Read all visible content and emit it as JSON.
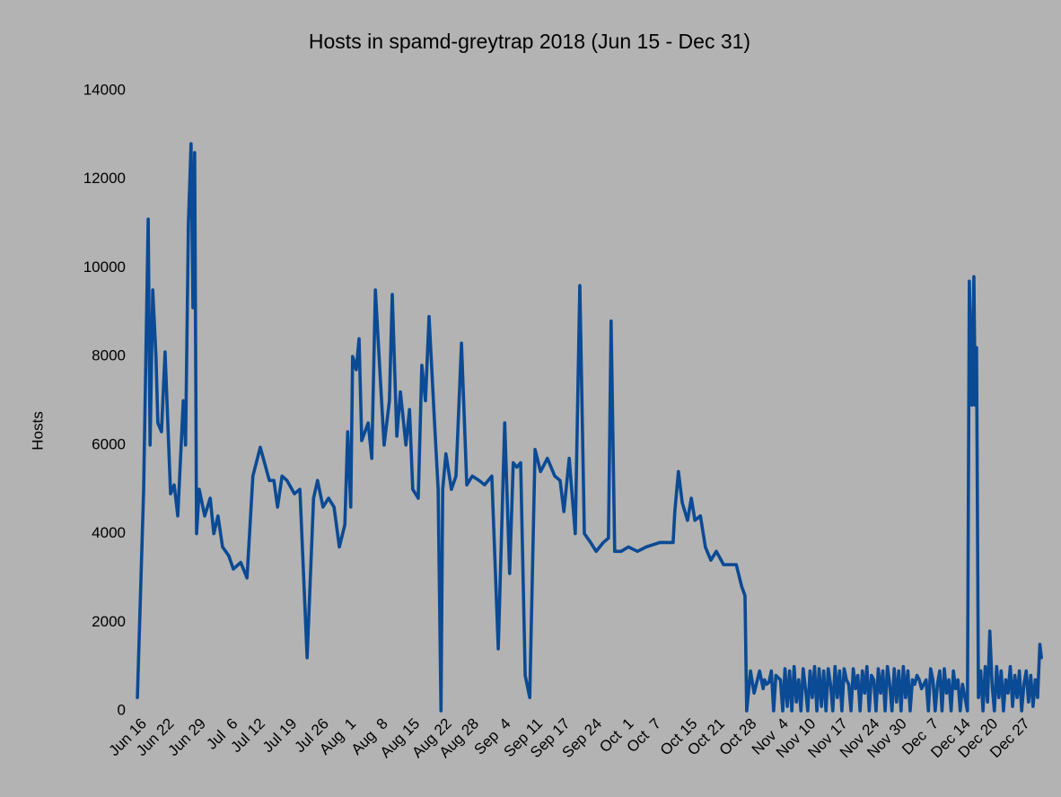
{
  "chart_data": {
    "type": "line",
    "title": "Hosts in spamd-greytrap 2018 (Jun 15 - Dec 31)",
    "y_label": "Hosts",
    "color": "#0b4a94",
    "xlim": [
      "2018-06-15",
      "2018-12-31"
    ],
    "ylim": [
      0,
      14000
    ],
    "yticks": [
      0,
      2000,
      4000,
      6000,
      8000,
      10000,
      12000,
      14000
    ],
    "grid": false,
    "xticks": [
      {
        "value": "2018-06-16",
        "label": "Jun 16"
      },
      {
        "value": "2018-06-22",
        "label": "Jun 22"
      },
      {
        "value": "2018-06-29",
        "label": "Jun 29"
      },
      {
        "value": "2018-07-06",
        "label": "Jul  6"
      },
      {
        "value": "2018-07-12",
        "label": "Jul 12"
      },
      {
        "value": "2018-07-19",
        "label": "Jul 19"
      },
      {
        "value": "2018-07-26",
        "label": "Jul 26"
      },
      {
        "value": "2018-08-01",
        "label": "Aug  1"
      },
      {
        "value": "2018-08-08",
        "label": "Aug  8"
      },
      {
        "value": "2018-08-15",
        "label": "Aug 15"
      },
      {
        "value": "2018-08-22",
        "label": "Aug 22"
      },
      {
        "value": "2018-08-28",
        "label": "Aug 28"
      },
      {
        "value": "2018-09-04",
        "label": "Sep  4"
      },
      {
        "value": "2018-09-11",
        "label": "Sep 11"
      },
      {
        "value": "2018-09-17",
        "label": "Sep 17"
      },
      {
        "value": "2018-09-24",
        "label": "Sep 24"
      },
      {
        "value": "2018-10-01",
        "label": "Oct  1"
      },
      {
        "value": "2018-10-07",
        "label": "Oct  7"
      },
      {
        "value": "2018-10-15",
        "label": "Oct 15"
      },
      {
        "value": "2018-10-21",
        "label": "Oct 21"
      },
      {
        "value": "2018-10-28",
        "label": "Oct 28"
      },
      {
        "value": "2018-11-04",
        "label": "Nov  4"
      },
      {
        "value": "2018-11-10",
        "label": "Nov 10"
      },
      {
        "value": "2018-11-17",
        "label": "Nov 17"
      },
      {
        "value": "2018-11-24",
        "label": "Nov 24"
      },
      {
        "value": "2018-11-30",
        "label": "Nov 30"
      },
      {
        "value": "2018-12-07",
        "label": "Dec  7"
      },
      {
        "value": "2018-12-14",
        "label": "Dec 14"
      },
      {
        "value": "2018-12-20",
        "label": "Dec 20"
      },
      {
        "value": "2018-12-27",
        "label": "Dec 27"
      }
    ],
    "x": [
      "2018-06-15T05:00",
      "2018-06-16T14:00",
      "2018-06-17T14:00",
      "2018-06-18T00:00",
      "2018-06-18T14:00",
      "2018-06-19T07:00",
      "2018-06-19T17:00",
      "2018-06-20T12:00",
      "2018-06-21T07:00",
      "2018-06-22T12:00",
      "2018-06-23T07:00",
      "2018-06-24T02:00",
      "2018-06-25T07:00",
      "2018-06-25T19:00",
      "2018-06-26T10:00",
      "2018-06-27T00:00",
      "2018-06-27T10:00",
      "2018-06-27T19:00",
      "2018-06-28T05:00",
      "2018-06-28T19:00",
      "2018-06-30T00:00",
      "2018-07-01T05:00",
      "2018-07-02T00:00",
      "2018-07-02T22:00",
      "2018-07-03T22:00",
      "2018-07-05T07:00",
      "2018-07-06T07:00",
      "2018-07-07T22:00",
      "2018-07-09T07:00",
      "2018-07-10T14:00",
      "2018-07-12T05:00",
      "2018-07-14T05:00",
      "2018-07-15T05:00",
      "2018-07-16T00:00",
      "2018-07-17T00:00",
      "2018-07-18T02:00",
      "2018-07-19T17:00",
      "2018-07-20T22:00",
      "2018-07-22T12:00",
      "2018-07-23T22:00",
      "2018-07-24T19:00",
      "2018-07-26T00:00",
      "2018-07-27T05:00",
      "2018-07-28T10:00",
      "2018-07-29T14:00",
      "2018-07-30T19:00",
      "2018-07-31T10:00",
      "2018-08-01T02:00",
      "2018-08-01T12:00",
      "2018-08-02T07:00",
      "2018-08-02T22:00",
      "2018-08-03T12:00",
      "2018-08-04T22:00",
      "2018-08-05T17:00",
      "2018-08-06T12:00",
      "2018-08-07T14:00",
      "2018-08-08T10:00",
      "2018-08-09T14:00",
      "2018-08-10T05:00",
      "2018-08-11T05:00",
      "2018-08-12T00:00",
      "2018-08-13T05:00",
      "2018-08-14T00:00",
      "2018-08-14T17:00",
      "2018-08-15T22:00",
      "2018-08-16T17:00",
      "2018-08-17T12:00",
      "2018-08-18T07:00",
      "2018-08-19T12:00",
      "2018-08-20T07:00",
      "2018-08-20T22:00",
      "2018-08-21T07:00",
      "2018-08-22T00:00",
      "2018-08-23T05:00",
      "2018-08-24T05:00",
      "2018-08-25T10:00",
      "2018-08-26T14:00",
      "2018-08-27T19:00",
      "2018-08-29T07:00",
      "2018-08-30T12:00",
      "2018-09-01T02:00",
      "2018-09-02T12:00",
      "2018-09-03T22:00",
      "2018-09-05T00:00",
      "2018-09-05T19:00",
      "2018-09-06T14:00",
      "2018-09-07T10:00",
      "2018-09-08T10:00",
      "2018-09-09T10:00",
      "2018-09-10T14:00",
      "2018-09-11T19:00",
      "2018-09-13T07:00",
      "2018-09-14T22:00",
      "2018-09-16T02:00",
      "2018-09-16T22:00",
      "2018-09-18T02:00",
      "2018-09-19T10:00",
      "2018-09-20T10:00",
      "2018-09-21T10:00",
      "2018-09-22T19:00",
      "2018-09-24T00:00",
      "2018-09-25T14:00",
      "2018-09-26T17:00",
      "2018-09-27T07:00",
      "2018-09-28T02:00",
      "2018-09-29T12:00",
      "2018-10-01T02:00",
      "2018-10-03T02:00",
      "2018-10-05T00:00",
      "2018-10-08T00:00",
      "2018-10-10T22:00",
      "2018-10-11T07:00",
      "2018-10-12T02:00",
      "2018-10-12T22:00",
      "2018-10-14T02:00",
      "2018-10-14T22:00",
      "2018-10-15T17:00",
      "2018-10-16T22:00",
      "2018-10-18T00:00",
      "2018-10-19T05:00",
      "2018-10-20T10:00",
      "2018-10-22T00:00",
      "2018-10-23T14:00",
      "2018-10-24T19:00",
      "2018-10-26T00:00",
      "2018-10-26T17:00",
      "2018-10-27T02:00",
      "2018-10-27T22:00",
      "2018-10-28T17:00",
      "2018-10-29T22:00",
      "2018-10-30T17:00",
      "2018-10-31T00:00",
      "2018-10-31T12:00",
      "2018-11-01T00:00",
      "2018-11-01T12:00",
      "2018-11-02T00:00",
      "2018-11-02T12:00",
      "2018-11-03T00:00",
      "2018-11-03T12:00",
      "2018-11-04T00:00",
      "2018-11-04T12:00",
      "2018-11-05T00:00",
      "2018-11-05T12:00",
      "2018-11-06T00:00",
      "2018-11-06T12:00",
      "2018-11-07T00:00",
      "2018-11-07T12:00",
      "2018-11-08T00:00",
      "2018-11-08T12:00",
      "2018-11-09T00:00",
      "2018-11-09T12:00",
      "2018-11-10T00:00",
      "2018-11-10T12:00",
      "2018-11-11T00:00",
      "2018-11-11T12:00",
      "2018-11-12T00:00",
      "2018-11-12T12:00",
      "2018-11-13T00:00",
      "2018-11-13T12:00",
      "2018-11-14T00:00",
      "2018-11-14T12:00",
      "2018-11-15T00:00",
      "2018-11-15T12:00",
      "2018-11-16T00:00",
      "2018-11-16T12:00",
      "2018-11-17T00:00",
      "2018-11-17T12:00",
      "2018-11-18T00:00",
      "2018-11-18T12:00",
      "2018-11-19T00:00",
      "2018-11-19T12:00",
      "2018-11-20T00:00",
      "2018-11-20T12:00",
      "2018-11-21T00:00",
      "2018-11-21T12:00",
      "2018-11-22T00:00",
      "2018-11-22T12:00",
      "2018-11-23T00:00",
      "2018-11-23T12:00",
      "2018-11-24T00:00",
      "2018-11-24T12:00",
      "2018-11-25T00:00",
      "2018-11-25T12:00",
      "2018-11-26T00:00",
      "2018-11-26T12:00",
      "2018-11-27T00:00",
      "2018-11-27T12:00",
      "2018-11-28T00:00",
      "2018-11-28T12:00",
      "2018-11-29T00:00",
      "2018-11-29T12:00",
      "2018-11-30T00:00",
      "2018-11-30T12:00",
      "2018-12-01T00:00",
      "2018-12-01T12:00",
      "2018-12-02T00:00",
      "2018-12-02T12:00",
      "2018-12-03T00:00",
      "2018-12-03T12:00",
      "2018-12-04T00:00",
      "2018-12-04T12:00",
      "2018-12-05T00:00",
      "2018-12-05T12:00",
      "2018-12-06T00:00",
      "2018-12-06T12:00",
      "2018-12-07T00:00",
      "2018-12-07T12:00",
      "2018-12-08T00:00",
      "2018-12-08T12:00",
      "2018-12-09T00:00",
      "2018-12-09T12:00",
      "2018-12-10T00:00",
      "2018-12-10T12:00",
      "2018-12-11T00:00",
      "2018-12-11T12:00",
      "2018-12-12T00:00",
      "2018-12-12T12:00",
      "2018-12-13T00:00",
      "2018-12-13T12:00",
      "2018-12-14T14:00",
      "2018-12-15T00:00",
      "2018-12-15T14:00",
      "2018-12-16T00:00",
      "2018-12-16T07:00",
      "2018-12-16T14:00",
      "2018-12-17T00:00",
      "2018-12-17T12:00",
      "2018-12-18T00:00",
      "2018-12-18T12:00",
      "2018-12-19T00:00",
      "2018-12-19T12:00",
      "2018-12-20T00:00",
      "2018-12-20T12:00",
      "2018-12-21T00:00",
      "2018-12-21T12:00",
      "2018-12-22T00:00",
      "2018-12-22T12:00",
      "2018-12-23T00:00",
      "2018-12-23T12:00",
      "2018-12-24T00:00",
      "2018-12-24T12:00",
      "2018-12-25T00:00",
      "2018-12-25T12:00",
      "2018-12-26T00:00",
      "2018-12-26T12:00",
      "2018-12-27T00:00",
      "2018-12-27T12:00",
      "2018-12-28T00:00",
      "2018-12-28T12:00",
      "2018-12-29T00:00",
      "2018-12-29T12:00",
      "2018-12-30T00:00",
      "2018-12-30T12:00",
      "2018-12-30T20:00"
    ],
    "values": [
      300,
      5000,
      11100,
      6000,
      9500,
      8000,
      6500,
      6300,
      8100,
      4900,
      5100,
      4400,
      7000,
      6000,
      11000,
      12800,
      9100,
      12600,
      4000,
      5000,
      4400,
      4800,
      4000,
      4400,
      3700,
      3500,
      3200,
      3350,
      3000,
      5300,
      5950,
      5200,
      5200,
      4600,
      5300,
      5200,
      4900,
      5000,
      1200,
      4800,
      5200,
      4600,
      4800,
      4600,
      3700,
      4200,
      6300,
      4600,
      8000,
      7700,
      8400,
      6100,
      6500,
      5700,
      9500,
      7500,
      6000,
      7000,
      9400,
      6200,
      7200,
      6000,
      6800,
      5000,
      4800,
      7800,
      7000,
      8900,
      6500,
      5000,
      0,
      5000,
      5800,
      5000,
      5300,
      8300,
      5100,
      5300,
      5200,
      5100,
      5300,
      1400,
      6500,
      3100,
      5600,
      5500,
      5600,
      800,
      300,
      5900,
      5400,
      5700,
      5300,
      5200,
      4500,
      5700,
      4000,
      9600,
      4000,
      3800,
      3600,
      3800,
      3900,
      8800,
      3600,
      3600,
      3700,
      3600,
      3700,
      3800,
      3800,
      4500,
      5400,
      4700,
      4300,
      4800,
      4300,
      4400,
      3700,
      3400,
      3600,
      3300,
      3300,
      3300,
      2800,
      2600,
      0,
      900,
      400,
      900,
      500,
      700,
      600,
      650,
      900,
      0,
      800,
      750,
      700,
      0,
      950,
      100,
      900,
      0,
      1000,
      200,
      700,
      0,
      950,
      500,
      0,
      900,
      300,
      1000,
      0,
      950,
      100,
      900,
      0,
      950,
      600,
      0,
      1000,
      300,
      900,
      0,
      950,
      700,
      600,
      0,
      950,
      500,
      800,
      0,
      900,
      400,
      1000,
      0,
      800,
      700,
      0,
      950,
      400,
      900,
      0,
      1000,
      600,
      0,
      950,
      200,
      900,
      0,
      1000,
      300,
      900,
      0,
      700,
      600,
      800,
      700,
      500,
      600,
      700,
      0,
      950,
      700,
      0,
      600,
      900,
      0,
      950,
      400,
      700,
      0,
      900,
      500,
      700,
      0,
      600,
      0,
      9700,
      6900,
      9800,
      6900,
      8200,
      300,
      900,
      0,
      1000,
      200,
      1800,
      600,
      0,
      1000,
      300,
      900,
      0,
      700,
      400,
      1000,
      100,
      800,
      300,
      900,
      0,
      600,
      900,
      200,
      800,
      100,
      700,
      300,
      1500,
      1200
    ]
  }
}
